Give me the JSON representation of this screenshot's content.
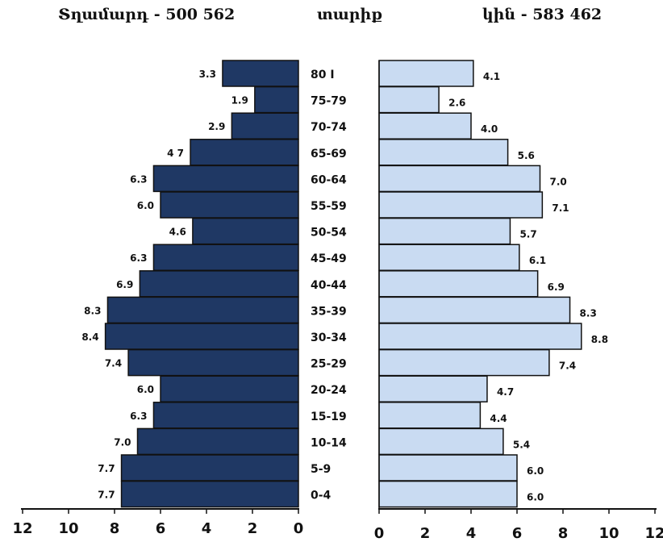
{
  "header": {
    "male": "Տղամարդ  -  500 562",
    "age": "տարիք",
    "female": "կին  - 583 462"
  },
  "colors": {
    "male": "#1f3864",
    "female": "#c9dbf2",
    "outline": "#111111"
  },
  "chart_data": {
    "type": "bar",
    "subtype": "population-pyramid",
    "categories": [
      "80+",
      "75-79",
      "70-74",
      "65-69",
      "60-64",
      "55-59",
      "50-54",
      "45-49",
      "40-44",
      "35-39",
      "30-34",
      "25-29",
      "20-24",
      "15-19",
      "10-14",
      "5-9",
      "0-4"
    ],
    "category_labels": [
      "80 I",
      "75-79",
      "70-74",
      "65-69",
      "60-64",
      "55-59",
      "50-54",
      "45-49",
      "40-44",
      "35-39",
      "30-34",
      "25-29",
      "20-24",
      "15-19",
      "10-14",
      "5-9",
      "0-4"
    ],
    "series": [
      {
        "values": [
          3.3,
          1.9,
          2.9,
          4.7,
          6.3,
          6.0,
          4.6,
          6.3,
          6.9,
          8.3,
          8.4,
          7.4,
          6.0,
          6.3,
          7.0,
          7.7,
          7.7
        ],
        "value_labels": [
          "3.3",
          "1.9",
          "2.9",
          "4 7",
          "6.3",
          "6.0",
          "4.6",
          "6.3",
          "6.9",
          "8.3",
          "8.4",
          "7.4",
          "6.0",
          "6.3",
          "7.0",
          "7.7",
          "7.7"
        ]
      },
      {
        "values": [
          4.1,
          2.6,
          4.0,
          5.6,
          7.0,
          7.1,
          5.7,
          6.1,
          6.9,
          8.3,
          8.8,
          7.4,
          4.7,
          4.4,
          5.4,
          6.0,
          6.0
        ],
        "value_labels": [
          "4.1",
          "2.6",
          "4.0",
          "5.6",
          "7.0",
          "7.1",
          "5.7",
          "6.1",
          "6.9",
          "8.3",
          "8.8",
          "7.4",
          "4.7",
          "4.4",
          "5.4",
          "6.0",
          "6.0"
        ]
      }
    ],
    "xlim": [
      0,
      12
    ],
    "male_ticks": [
      "12",
      "10",
      "8",
      "6",
      "4",
      "2",
      "0"
    ],
    "female_ticks": [
      "0",
      "2",
      "4",
      "6",
      "8",
      "10",
      "12"
    ],
    "grid": false,
    "legend": "none"
  }
}
